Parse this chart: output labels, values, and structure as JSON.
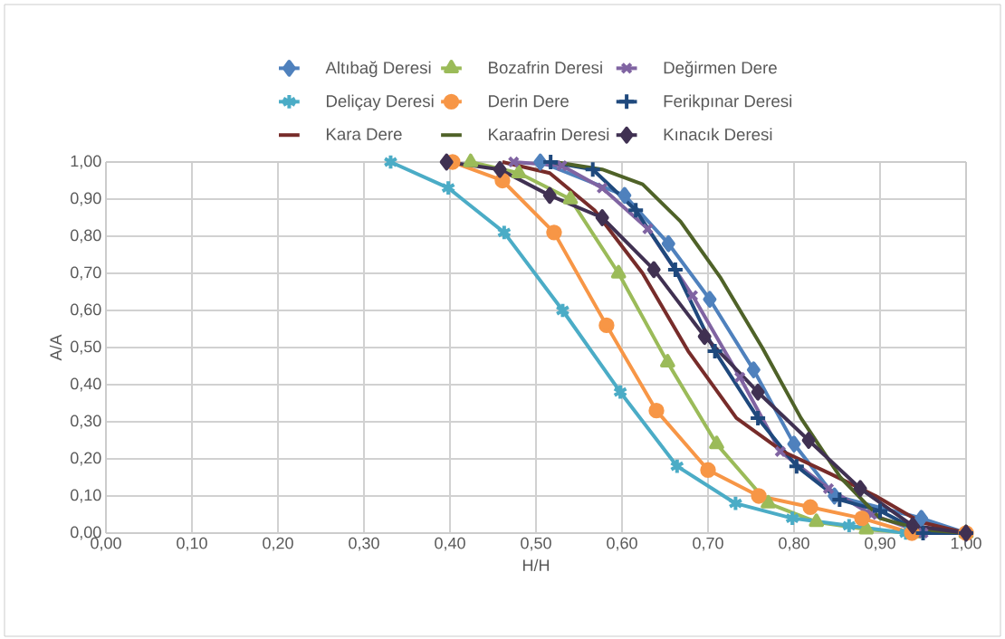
{
  "chart_data": {
    "type": "line",
    "xlabel": "H/H",
    "ylabel": "A/A",
    "xlim": [
      0,
      1
    ],
    "ylim": [
      0,
      1
    ],
    "xticks": [
      {
        "value": 0,
        "label": "0,00"
      },
      {
        "value": 0.1,
        "label": "0,10"
      },
      {
        "value": 0.2,
        "label": "0,20"
      },
      {
        "value": 0.3,
        "label": "0,30"
      },
      {
        "value": 0.4,
        "label": "0,40"
      },
      {
        "value": 0.5,
        "label": "0,50"
      },
      {
        "value": 0.6,
        "label": "0,60"
      },
      {
        "value": 0.7,
        "label": "0,70"
      },
      {
        "value": 0.8,
        "label": "0,80"
      },
      {
        "value": 0.9,
        "label": "0,90"
      },
      {
        "value": 1,
        "label": "1,00"
      }
    ],
    "yticks": [
      {
        "value": 0,
        "label": "0,00"
      },
      {
        "value": 0.1,
        "label": "0,10"
      },
      {
        "value": 0.2,
        "label": "0,20"
      },
      {
        "value": 0.3,
        "label": "0,30"
      },
      {
        "value": 0.4,
        "label": "0,40"
      },
      {
        "value": 0.5,
        "label": "0,50"
      },
      {
        "value": 0.6,
        "label": "0,60"
      },
      {
        "value": 0.7,
        "label": "0,70"
      },
      {
        "value": 0.8,
        "label": "0,80"
      },
      {
        "value": 0.9,
        "label": "0,90"
      },
      {
        "value": 1,
        "label": "1,00"
      }
    ],
    "grid": true,
    "legend": "top",
    "series": [
      {
        "name": "Altıbağ Deresi",
        "color": "#4f81bd",
        "marker": "diamond",
        "x": [
          0.505,
          0.603,
          0.654,
          0.702,
          0.753,
          0.8,
          0.847,
          0.948,
          1.0
        ],
        "values": [
          1.0,
          0.91,
          0.78,
          0.63,
          0.44,
          0.24,
          0.1,
          0.04,
          0.0
        ]
      },
      {
        "name": "Bozafrin Deresi",
        "color": "#9bbb59",
        "marker": "triangle",
        "x": [
          0.424,
          0.48,
          0.54,
          0.596,
          0.653,
          0.71,
          0.77,
          0.826,
          0.884,
          0.94,
          1.0
        ],
        "values": [
          1.0,
          0.97,
          0.9,
          0.7,
          0.46,
          0.24,
          0.08,
          0.03,
          0.01,
          0.0,
          0.0
        ]
      },
      {
        "name": "Değirmen Dere",
        "color": "#8064a2",
        "marker": "cross",
        "x": [
          0.474,
          0.53,
          0.577,
          0.63,
          0.682,
          0.737,
          0.784,
          0.84,
          0.89,
          0.95,
          1.0
        ],
        "values": [
          1.0,
          0.99,
          0.93,
          0.82,
          0.64,
          0.42,
          0.22,
          0.12,
          0.05,
          0.0,
          0.0
        ]
      },
      {
        "name": "Deliçay Deresi",
        "color": "#4bacc6",
        "marker": "cross",
        "x": [
          0.331,
          0.398,
          0.463,
          0.531,
          0.598,
          0.664,
          0.732,
          0.798,
          0.864,
          0.93,
          1.0
        ],
        "values": [
          1.0,
          0.93,
          0.81,
          0.6,
          0.38,
          0.18,
          0.08,
          0.04,
          0.02,
          0.0,
          0.0
        ]
      },
      {
        "name": "Derin Dere",
        "color": "#f79646",
        "marker": "circle",
        "x": [
          0.403,
          0.461,
          0.521,
          0.582,
          0.64,
          0.7,
          0.759,
          0.819,
          0.879,
          0.937,
          1.0
        ],
        "values": [
          1.0,
          0.95,
          0.81,
          0.56,
          0.33,
          0.17,
          0.1,
          0.07,
          0.04,
          0.0,
          0.0
        ]
      },
      {
        "name": "Ferikpınar Deresi",
        "color": "#1f497d",
        "marker": "cross",
        "x": [
          0.517,
          0.566,
          0.616,
          0.662,
          0.708,
          0.758,
          0.803,
          0.853,
          0.9,
          0.95,
          1.0
        ],
        "values": [
          1.0,
          0.98,
          0.87,
          0.71,
          0.49,
          0.31,
          0.18,
          0.09,
          0.06,
          0.0,
          0.0
        ]
      },
      {
        "name": "Kara Dere",
        "color": "#772c2a",
        "marker": "none",
        "x": [
          0.461,
          0.516,
          0.568,
          0.624,
          0.677,
          0.733,
          0.787,
          0.842,
          0.895,
          0.947,
          1.0
        ],
        "values": [
          1.0,
          0.97,
          0.87,
          0.7,
          0.49,
          0.31,
          0.22,
          0.16,
          0.1,
          0.03,
          0.0
        ]
      },
      {
        "name": "Karaafrin Deresi",
        "color": "#4f6228",
        "marker": "none",
        "x": [
          0.522,
          0.577,
          0.624,
          0.668,
          0.714,
          0.763,
          0.808,
          0.854,
          0.9,
          0.947,
          1.0
        ],
        "values": [
          1.0,
          0.98,
          0.94,
          0.84,
          0.69,
          0.5,
          0.31,
          0.15,
          0.04,
          0.01,
          0.0
        ]
      },
      {
        "name": "Kınacık Deresi",
        "color": "#403152",
        "marker": "diamond",
        "x": [
          0.396,
          0.458,
          0.516,
          0.577,
          0.637,
          0.696,
          0.758,
          0.817,
          0.877,
          0.938,
          1.0
        ],
        "values": [
          1.0,
          0.98,
          0.91,
          0.85,
          0.71,
          0.53,
          0.38,
          0.25,
          0.12,
          0.02,
          0.0
        ]
      }
    ]
  }
}
